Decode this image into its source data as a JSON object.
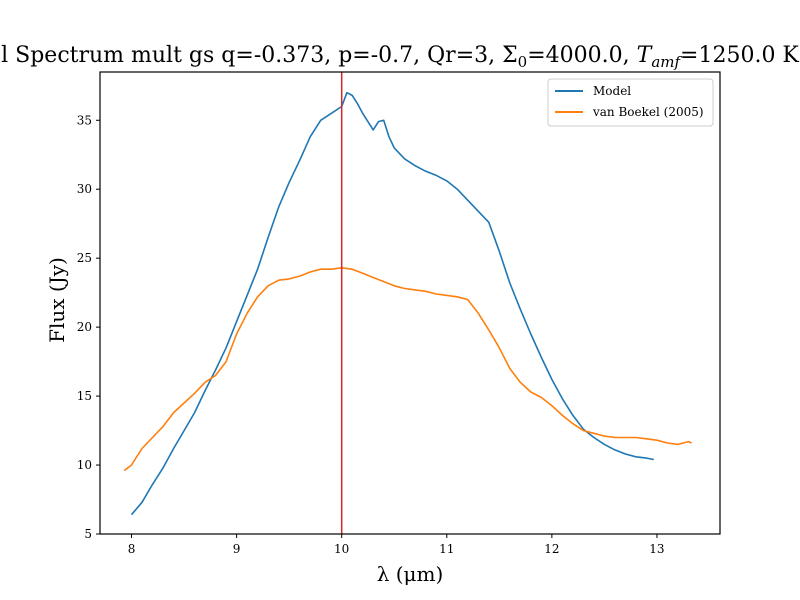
{
  "chart_data": {
    "type": "line",
    "title": "l Spectrum mult gs q=-0.373, p=-0.7, Qr=3, Σ0=4000.0, Tamf=1250.0 K",
    "title_parts": {
      "prefix": "l Spectrum mult gs q=-0.373, p=-0.7, Qr=3, Σ",
      "sigma_sub": "0",
      "mid": "=4000.0, ",
      "t_symbol": "T",
      "t_sub": "amf",
      "suffix": "=1250.0 K"
    },
    "xlabel": "λ (μm)",
    "ylabel": "Flux (Jy)",
    "xlim": [
      7.7,
      13.6
    ],
    "ylim": [
      5,
      38.5
    ],
    "xticks": [
      8,
      9,
      10,
      11,
      12,
      13
    ],
    "yticks": [
      5,
      10,
      15,
      20,
      25,
      30,
      35
    ],
    "vline": {
      "x": 10.0,
      "color": "#d62728"
    },
    "legend": {
      "placement": "top-right"
    },
    "series": [
      {
        "name": "Model",
        "color": "#1f77b4",
        "x": [
          8.0,
          8.1,
          8.2,
          8.3,
          8.4,
          8.5,
          8.6,
          8.7,
          8.8,
          8.9,
          9.0,
          9.1,
          9.2,
          9.3,
          9.4,
          9.5,
          9.6,
          9.7,
          9.8,
          9.9,
          10.0,
          10.05,
          10.1,
          10.15,
          10.2,
          10.3,
          10.35,
          10.4,
          10.45,
          10.5,
          10.6,
          10.7,
          10.8,
          10.9,
          11.0,
          11.1,
          11.2,
          11.3,
          11.4,
          11.5,
          11.6,
          11.7,
          11.8,
          11.9,
          12.0,
          12.1,
          12.2,
          12.3,
          12.4,
          12.5,
          12.6,
          12.7,
          12.8,
          12.9,
          12.97
        ],
        "y": [
          6.4,
          7.3,
          8.6,
          9.8,
          11.2,
          12.5,
          13.8,
          15.4,
          16.9,
          18.5,
          20.4,
          22.3,
          24.2,
          26.5,
          28.7,
          30.5,
          32.1,
          33.8,
          35.0,
          35.5,
          36.0,
          37.0,
          36.8,
          36.2,
          35.5,
          34.3,
          34.9,
          35.0,
          33.8,
          33.0,
          32.2,
          31.7,
          31.3,
          31.0,
          30.6,
          30.0,
          29.2,
          28.4,
          27.6,
          25.5,
          23.2,
          21.3,
          19.5,
          17.8,
          16.2,
          14.8,
          13.6,
          12.6,
          12.0,
          11.5,
          11.1,
          10.8,
          10.6,
          10.5,
          10.4
        ]
      },
      {
        "name": "van Boekel (2005)",
        "color": "#ff7f0e",
        "x": [
          7.93,
          8.0,
          8.1,
          8.2,
          8.3,
          8.4,
          8.5,
          8.6,
          8.7,
          8.8,
          8.9,
          9.0,
          9.1,
          9.2,
          9.3,
          9.4,
          9.5,
          9.6,
          9.7,
          9.8,
          9.9,
          10.0,
          10.1,
          10.2,
          10.3,
          10.4,
          10.5,
          10.6,
          10.7,
          10.8,
          10.9,
          11.0,
          11.1,
          11.2,
          11.3,
          11.4,
          11.5,
          11.6,
          11.7,
          11.8,
          11.9,
          12.0,
          12.1,
          12.2,
          12.3,
          12.4,
          12.5,
          12.6,
          12.7,
          12.8,
          12.9,
          13.0,
          13.1,
          13.2,
          13.3,
          13.33
        ],
        "y": [
          9.6,
          10.0,
          11.2,
          12.0,
          12.8,
          13.8,
          14.5,
          15.2,
          16.0,
          16.5,
          17.5,
          19.5,
          21.0,
          22.2,
          23.0,
          23.4,
          23.5,
          23.7,
          24.0,
          24.2,
          24.2,
          24.3,
          24.2,
          23.9,
          23.6,
          23.3,
          23.0,
          22.8,
          22.7,
          22.6,
          22.4,
          22.3,
          22.2,
          22.0,
          21.0,
          19.8,
          18.5,
          17.0,
          16.0,
          15.3,
          14.9,
          14.3,
          13.6,
          13.0,
          12.5,
          12.3,
          12.1,
          12.0,
          12.0,
          12.0,
          11.9,
          11.8,
          11.6,
          11.5,
          11.7,
          11.6
        ]
      }
    ]
  }
}
